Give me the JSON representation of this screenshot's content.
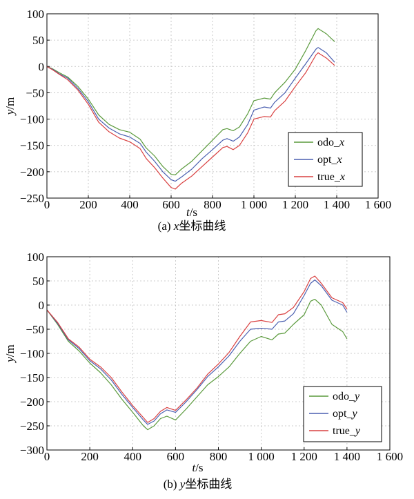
{
  "chart_data": [
    {
      "type": "line",
      "caption": "(a) x坐标曲线",
      "xlabel": "t/s",
      "ylabel": "y/m",
      "xlim": [
        0,
        1600
      ],
      "ylim": [
        -250,
        100
      ],
      "x_ticks": [
        "0",
        "200",
        "400",
        "600",
        "800",
        "1 000",
        "1 200",
        "1 400",
        "1 600"
      ],
      "y_ticks": [
        "100",
        "50",
        "0",
        "−50",
        "−100",
        "−150",
        "−200",
        "−250"
      ],
      "grid": true,
      "legend_position": "bottom-right",
      "series": [
        {
          "name": "odo_x",
          "color": "#5a9a3c",
          "points": [
            [
              0,
              0
            ],
            [
              30,
              -5
            ],
            [
              60,
              -12
            ],
            [
              100,
              -20
            ],
            [
              150,
              -38
            ],
            [
              200,
              -62
            ],
            [
              250,
              -92
            ],
            [
              300,
              -110
            ],
            [
              350,
              -120
            ],
            [
              400,
              -125
            ],
            [
              450,
              -138
            ],
            [
              480,
              -155
            ],
            [
              520,
              -170
            ],
            [
              560,
              -190
            ],
            [
              600,
              -205
            ],
            [
              620,
              -206
            ],
            [
              650,
              -195
            ],
            [
              700,
              -180
            ],
            [
              750,
              -160
            ],
            [
              800,
              -140
            ],
            [
              850,
              -120
            ],
            [
              870,
              -118
            ],
            [
              900,
              -122
            ],
            [
              930,
              -115
            ],
            [
              970,
              -90
            ],
            [
              1000,
              -65
            ],
            [
              1050,
              -60
            ],
            [
              1080,
              -62
            ],
            [
              1100,
              -50
            ],
            [
              1150,
              -30
            ],
            [
              1200,
              -5
            ],
            [
              1250,
              30
            ],
            [
              1300,
              68
            ],
            [
              1310,
              72
            ],
            [
              1350,
              62
            ],
            [
              1390,
              47
            ]
          ]
        },
        {
          "name": "opt_x",
          "color": "#4a5fb0",
          "points": [
            [
              0,
              0
            ],
            [
              30,
              -6
            ],
            [
              60,
              -14
            ],
            [
              100,
              -22
            ],
            [
              150,
              -42
            ],
            [
              200,
              -67
            ],
            [
              250,
              -100
            ],
            [
              300,
              -117
            ],
            [
              350,
              -128
            ],
            [
              400,
              -134
            ],
            [
              450,
              -146
            ],
            [
              480,
              -163
            ],
            [
              520,
              -180
            ],
            [
              560,
              -200
            ],
            [
              600,
              -215
            ],
            [
              620,
              -218
            ],
            [
              650,
              -210
            ],
            [
              700,
              -195
            ],
            [
              750,
              -175
            ],
            [
              800,
              -158
            ],
            [
              850,
              -140
            ],
            [
              870,
              -137
            ],
            [
              900,
              -142
            ],
            [
              930,
              -134
            ],
            [
              970,
              -110
            ],
            [
              1000,
              -83
            ],
            [
              1050,
              -77
            ],
            [
              1080,
              -79
            ],
            [
              1100,
              -68
            ],
            [
              1150,
              -50
            ],
            [
              1200,
              -22
            ],
            [
              1250,
              5
            ],
            [
              1300,
              33
            ],
            [
              1310,
              36
            ],
            [
              1350,
              26
            ],
            [
              1390,
              8
            ]
          ]
        },
        {
          "name": "true_x",
          "color": "#d94040",
          "points": [
            [
              0,
              0
            ],
            [
              30,
              -7
            ],
            [
              60,
              -15
            ],
            [
              100,
              -25
            ],
            [
              150,
              -45
            ],
            [
              200,
              -72
            ],
            [
              250,
              -106
            ],
            [
              300,
              -124
            ],
            [
              350,
              -136
            ],
            [
              400,
              -143
            ],
            [
              450,
              -156
            ],
            [
              480,
              -175
            ],
            [
              520,
              -192
            ],
            [
              560,
              -212
            ],
            [
              600,
              -230
            ],
            [
              620,
              -233
            ],
            [
              650,
              -222
            ],
            [
              700,
              -208
            ],
            [
              750,
              -190
            ],
            [
              800,
              -172
            ],
            [
              850,
              -154
            ],
            [
              870,
              -152
            ],
            [
              900,
              -158
            ],
            [
              930,
              -150
            ],
            [
              970,
              -126
            ],
            [
              1000,
              -100
            ],
            [
              1050,
              -95
            ],
            [
              1080,
              -96
            ],
            [
              1100,
              -84
            ],
            [
              1150,
              -66
            ],
            [
              1200,
              -38
            ],
            [
              1250,
              -12
            ],
            [
              1300,
              22
            ],
            [
              1310,
              26
            ],
            [
              1350,
              16
            ],
            [
              1390,
              2
            ]
          ]
        }
      ]
    },
    {
      "type": "line",
      "caption": "(b) y坐标曲线",
      "xlabel": "t/s",
      "ylabel": "y/m",
      "xlim": [
        0,
        1600
      ],
      "ylim": [
        -300,
        100
      ],
      "x_ticks": [
        "0",
        "200",
        "400",
        "600",
        "800",
        "1 000",
        "1 200",
        "1 400",
        "1 600"
      ],
      "y_ticks": [
        "100",
        "50",
        "0",
        "−50",
        "−100",
        "−150",
        "−200",
        "−250",
        "−300"
      ],
      "grid": true,
      "legend_position": "bottom-right",
      "series": [
        {
          "name": "odo_y",
          "color": "#5a9a3c",
          "points": [
            [
              0,
              -10
            ],
            [
              50,
              -40
            ],
            [
              100,
              -75
            ],
            [
              150,
              -95
            ],
            [
              200,
              -120
            ],
            [
              250,
              -140
            ],
            [
              300,
              -165
            ],
            [
              350,
              -195
            ],
            [
              400,
              -222
            ],
            [
              450,
              -250
            ],
            [
              470,
              -258
            ],
            [
              500,
              -250
            ],
            [
              530,
              -235
            ],
            [
              560,
              -230
            ],
            [
              600,
              -238
            ],
            [
              650,
              -215
            ],
            [
              700,
              -190
            ],
            [
              750,
              -165
            ],
            [
              800,
              -148
            ],
            [
              850,
              -128
            ],
            [
              900,
              -100
            ],
            [
              950,
              -75
            ],
            [
              1000,
              -65
            ],
            [
              1050,
              -72
            ],
            [
              1080,
              -60
            ],
            [
              1110,
              -58
            ],
            [
              1150,
              -40
            ],
            [
              1200,
              -20
            ],
            [
              1230,
              8
            ],
            [
              1250,
              12
            ],
            [
              1280,
              0
            ],
            [
              1330,
              -40
            ],
            [
              1380,
              -55
            ],
            [
              1400,
              -70
            ]
          ]
        },
        {
          "name": "opt_y",
          "color": "#4a5fb0",
          "points": [
            [
              0,
              -10
            ],
            [
              50,
              -38
            ],
            [
              100,
              -72
            ],
            [
              150,
              -90
            ],
            [
              200,
              -115
            ],
            [
              250,
              -132
            ],
            [
              300,
              -155
            ],
            [
              350,
              -185
            ],
            [
              400,
              -212
            ],
            [
              450,
              -238
            ],
            [
              470,
              -247
            ],
            [
              500,
              -240
            ],
            [
              530,
              -225
            ],
            [
              560,
              -217
            ],
            [
              600,
              -222
            ],
            [
              650,
              -200
            ],
            [
              700,
              -175
            ],
            [
              750,
              -148
            ],
            [
              800,
              -128
            ],
            [
              850,
              -105
            ],
            [
              900,
              -75
            ],
            [
              950,
              -50
            ],
            [
              1000,
              -48
            ],
            [
              1050,
              -50
            ],
            [
              1080,
              -35
            ],
            [
              1110,
              -33
            ],
            [
              1150,
              -18
            ],
            [
              1200,
              20
            ],
            [
              1230,
              45
            ],
            [
              1250,
              52
            ],
            [
              1280,
              40
            ],
            [
              1330,
              10
            ],
            [
              1380,
              0
            ],
            [
              1400,
              -15
            ]
          ]
        },
        {
          "name": "true_y",
          "color": "#d94040",
          "points": [
            [
              0,
              -10
            ],
            [
              50,
              -36
            ],
            [
              100,
              -70
            ],
            [
              150,
              -87
            ],
            [
              200,
              -112
            ],
            [
              250,
              -128
            ],
            [
              300,
              -150
            ],
            [
              350,
              -180
            ],
            [
              400,
              -208
            ],
            [
              450,
              -233
            ],
            [
              470,
              -243
            ],
            [
              500,
              -235
            ],
            [
              530,
              -220
            ],
            [
              560,
              -212
            ],
            [
              600,
              -218
            ],
            [
              650,
              -196
            ],
            [
              700,
              -172
            ],
            [
              750,
              -143
            ],
            [
              800,
              -122
            ],
            [
              850,
              -98
            ],
            [
              900,
              -65
            ],
            [
              950,
              -35
            ],
            [
              1000,
              -32
            ],
            [
              1050,
              -36
            ],
            [
              1080,
              -20
            ],
            [
              1110,
              -18
            ],
            [
              1150,
              -5
            ],
            [
              1200,
              28
            ],
            [
              1230,
              55
            ],
            [
              1250,
              60
            ],
            [
              1280,
              45
            ],
            [
              1330,
              15
            ],
            [
              1380,
              5
            ],
            [
              1400,
              -8
            ]
          ]
        }
      ]
    }
  ]
}
